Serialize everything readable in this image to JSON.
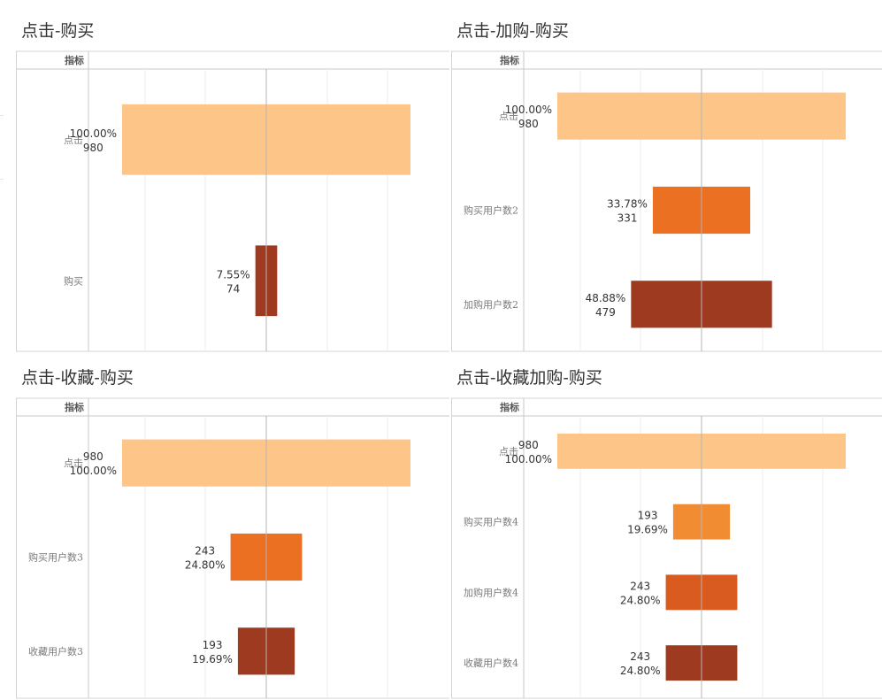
{
  "header_label": "指标",
  "colors": {
    "peach": "#fec589",
    "orange": "#ec7022",
    "orange_light": "#f28c32",
    "orange_dark": "#d95b20",
    "rust": "#9e3a20"
  },
  "chart_data": [
    {
      "type": "bar",
      "orientation": "horizontal-centered",
      "title": "点击-购买",
      "categories": [
        "点击",
        "购买"
      ],
      "values": [
        980,
        74
      ],
      "percent_labels": [
        "100.00%",
        "7.55%"
      ],
      "value_labels": [
        "980",
        "74"
      ],
      "label_order": "percent-first",
      "bar_colors": [
        "peach",
        "rust"
      ],
      "grid": true
    },
    {
      "type": "bar",
      "orientation": "horizontal-centered",
      "title": "点击-加购-购买",
      "categories": [
        "点击",
        "购买用户数2",
        "加购用户数2"
      ],
      "values": [
        980,
        331,
        479
      ],
      "percent_labels": [
        "100.00%",
        "33.78%",
        "48.88%"
      ],
      "value_labels": [
        "980",
        "331",
        "479"
      ],
      "label_order": "percent-first",
      "bar_colors": [
        "peach",
        "orange",
        "rust"
      ],
      "grid": true
    },
    {
      "type": "bar",
      "orientation": "horizontal-centered",
      "title": "点击-收藏-购买",
      "categories": [
        "点击",
        "购买用户数3",
        "收藏用户数3"
      ],
      "values": [
        980,
        243,
        193
      ],
      "percent_labels": [
        "100.00%",
        "24.80%",
        "19.69%"
      ],
      "value_labels": [
        "980",
        "243",
        "193"
      ],
      "label_order": "value-first",
      "bar_colors": [
        "peach",
        "orange",
        "rust"
      ],
      "grid": true
    },
    {
      "type": "bar",
      "orientation": "horizontal-centered",
      "title": "点击-收藏加购-购买",
      "categories": [
        "点击",
        "购买用户数4",
        "加购用户数4",
        "收藏用户数4"
      ],
      "values": [
        980,
        193,
        243,
        243
      ],
      "percent_labels": [
        "100.00%",
        "19.69%",
        "24.80%",
        "24.80%"
      ],
      "value_labels": [
        "980",
        "193",
        "243",
        "243"
      ],
      "label_order": "value-first",
      "bar_colors": [
        "peach",
        "orange_light",
        "orange_dark",
        "rust"
      ],
      "grid": true
    }
  ]
}
